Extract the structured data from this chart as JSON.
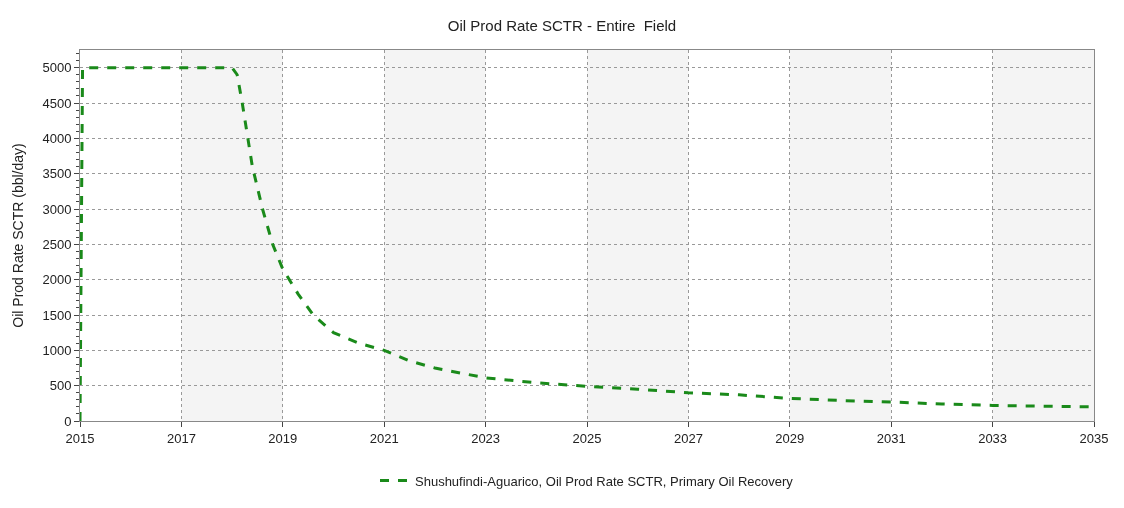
{
  "chart_data": {
    "type": "line",
    "title": "Oil Prod Rate SCTR - Entire  Field",
    "ylabel": "Oil Prod Rate SCTR (bbl/day)",
    "x": [
      2015,
      2015.05,
      2018,
      2018.1,
      2018.2,
      2018.4,
      2018.6,
      2018.8,
      2019,
      2019.3,
      2019.6,
      2020,
      2020.5,
      2021,
      2021.5,
      2022,
      2022.5,
      2023,
      2024,
      2025,
      2026,
      2027,
      2028,
      2029,
      2030,
      2031,
      2032,
      2033,
      2034,
      2035
    ],
    "series": [
      {
        "name": "Shushufindi-Aguarico, Oil Prod Rate SCTR, Primary Oil Recovery",
        "color": "#1a8a1a",
        "values": [
          0,
          5000,
          5000,
          4900,
          4500,
          3600,
          3000,
          2500,
          2150,
          1800,
          1500,
          1250,
          1100,
          1000,
          850,
          750,
          680,
          610,
          540,
          490,
          450,
          400,
          370,
          320,
          290,
          270,
          240,
          220,
          210,
          200
        ]
      }
    ],
    "xlim": [
      2015,
      2035
    ],
    "xticks": [
      2015,
      2017,
      2019,
      2021,
      2023,
      2025,
      2027,
      2029,
      2031,
      2033,
      2035
    ],
    "ylim": [
      0,
      5250
    ],
    "yticks": [
      0,
      500,
      1000,
      1500,
      2000,
      2500,
      3000,
      3500,
      4000,
      4500,
      5000
    ],
    "bands": [
      {
        "axis": "x",
        "from": 2017,
        "to": 2019,
        "color": "#f4f4f4"
      },
      {
        "axis": "x",
        "from": 2021,
        "to": 2023,
        "color": "#f4f4f4"
      },
      {
        "axis": "x",
        "from": 2025,
        "to": 2027,
        "color": "#f4f4f4"
      },
      {
        "axis": "x",
        "from": 2029,
        "to": 2031,
        "color": "#f4f4f4"
      },
      {
        "axis": "x",
        "from": 2033,
        "to": 2035,
        "color": "#f4f4f4"
      }
    ],
    "grid": true,
    "legend": "bottom",
    "marker": "none",
    "line_style": "dashed"
  }
}
